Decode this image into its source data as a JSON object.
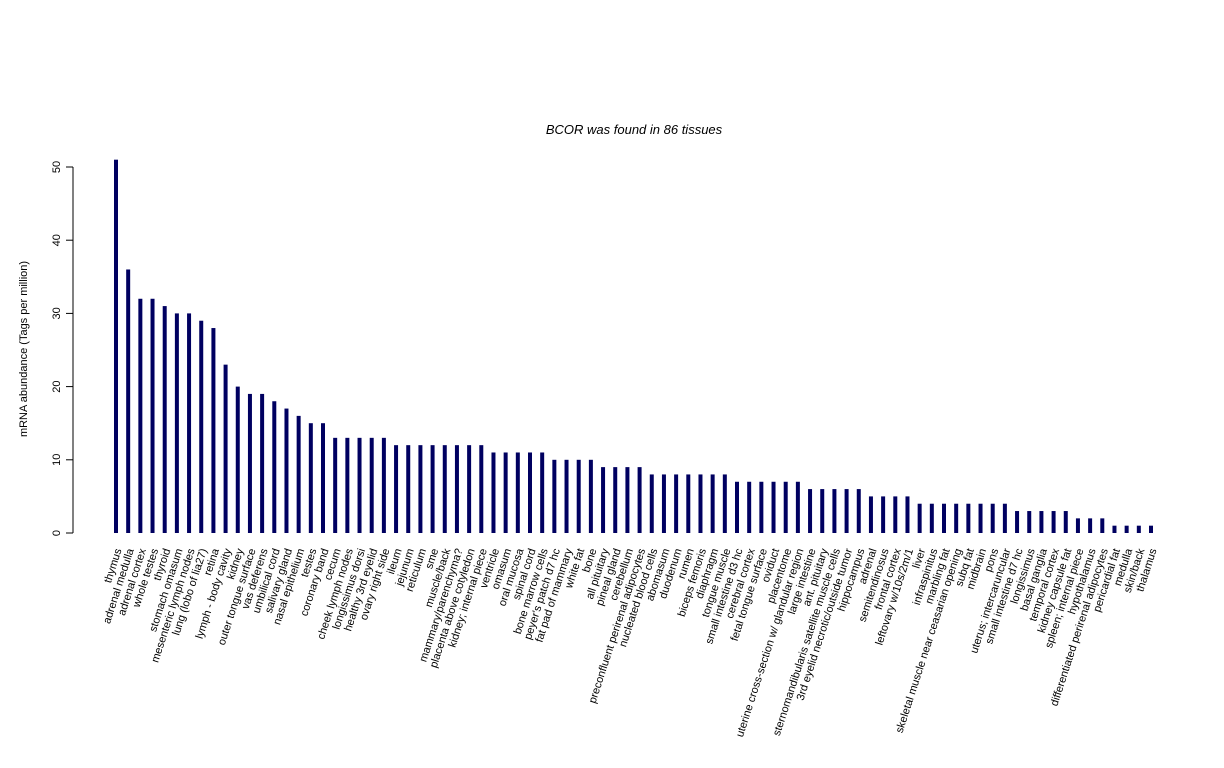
{
  "chart_data": {
    "type": "bar",
    "title": "BCOR  was found in  86  tissues",
    "y_label": "mRNA abundance (Tags per million)",
    "color": "#000060",
    "ylim": [
      0,
      50
    ],
    "yticks": [
      0,
      10,
      20,
      30,
      40,
      50
    ],
    "categories": [
      "thymus",
      "adrenal medulla",
      "adrenal cortex",
      "whole testes",
      "thyroid",
      "stomach omasum",
      "mesenteric lymph nodes",
      "lung (lobo of lia27)",
      "retina",
      "lymph - body cavity",
      "kidney",
      "outer tongue surface",
      "vas deferens",
      "umbilical cord",
      "salivary gland",
      "nasal epithelium",
      "testes",
      "coronary band",
      "cecum",
      "cheek lymph nodes",
      "longissimus dorsi",
      "healthy 3rd eyelid",
      "ovary right side",
      "ileum",
      "jejunum",
      "reticulum",
      "sme",
      "muscle/back",
      "mammary/parenchyma?",
      "placenta above cotyledon",
      "kidney; internal piece",
      "ventricle",
      "omasum",
      "oral mucosa",
      "spinal cord",
      "bone marrow cells",
      "peyer's patch d7 hc",
      "fat pad of mammary",
      "white fat",
      "bone",
      "all pituitary",
      "pineal gland",
      "cerebellum",
      "preconfluent perirenal adipocytes",
      "nucleated blood cells",
      "abomasum",
      "duodenum",
      "rumen",
      "biceps femoris",
      "diaphragm",
      "tongue muscle",
      "small intestine d3 hc",
      "cerebral cortex",
      "fetal tongue surface",
      "oviduct",
      "placentome",
      "uterine cross-section w/ glandular region",
      "large intestine",
      "ant. pituitary",
      "sternomandibularis satellite muscle cells",
      "3rd eyelid necrotic/outside tumor",
      "hippocampus",
      "adrenal",
      "semitendinosus",
      "frontal cortex",
      "leftovary w/10s/2m/1",
      "liver",
      "infraspinitus",
      "marbling fat",
      "skeletal muscle near ceasarian opening",
      "subq fat",
      "midbrain",
      "pons",
      "uterus; intercaruncular",
      "small intestine d7 hc",
      "longissimus",
      "basal ganglia",
      "temporal cortex",
      "kidney capsule fat",
      "spleen; internal piece",
      "hypothalamus",
      "differentiated perirenal adipocytes",
      "pericardial fat",
      "medulla",
      "skin/back",
      "thalamus"
    ],
    "values": [
      51,
      36,
      32,
      32,
      31,
      30,
      30,
      29,
      28,
      23,
      20,
      19,
      19,
      18,
      17,
      16,
      15,
      15,
      13,
      13,
      13,
      13,
      13,
      12,
      12,
      12,
      12,
      12,
      12,
      12,
      12,
      11,
      11,
      11,
      11,
      11,
      10,
      10,
      10,
      10,
      9,
      9,
      9,
      9,
      8,
      8,
      8,
      8,
      8,
      8,
      8,
      7,
      7,
      7,
      7,
      7,
      7,
      6,
      6,
      6,
      6,
      6,
      5,
      5,
      5,
      5,
      4,
      4,
      4,
      4,
      4,
      4,
      4,
      4,
      3,
      3,
      3,
      3,
      3,
      2,
      2,
      2,
      1,
      1,
      1,
      1
    ]
  }
}
